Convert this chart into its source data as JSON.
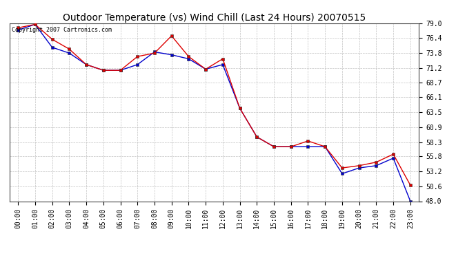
{
  "title": "Outdoor Temperature (vs) Wind Chill (Last 24 Hours) 20070515",
  "copyright_text": "Copyright 2007 Cartronics.com",
  "x_labels": [
    "00:00",
    "01:00",
    "02:00",
    "03:00",
    "04:00",
    "05:00",
    "06:00",
    "07:00",
    "08:00",
    "09:00",
    "10:00",
    "11:00",
    "12:00",
    "13:00",
    "14:00",
    "15:00",
    "16:00",
    "17:00",
    "18:00",
    "19:00",
    "20:00",
    "21:00",
    "22:00",
    "23:00"
  ],
  "temp_red": [
    78.2,
    78.8,
    76.2,
    74.5,
    71.8,
    70.8,
    70.8,
    73.2,
    73.8,
    76.8,
    73.2,
    71.0,
    72.8,
    64.2,
    59.2,
    57.5,
    57.5,
    58.5,
    57.5,
    53.8,
    54.2,
    54.8,
    56.2,
    50.8
  ],
  "temp_blue": [
    77.8,
    78.8,
    74.8,
    73.8,
    71.8,
    70.8,
    70.8,
    71.8,
    74.0,
    73.5,
    72.8,
    71.0,
    71.8,
    64.2,
    59.2,
    57.5,
    57.5,
    57.5,
    57.5,
    52.8,
    53.8,
    54.2,
    55.5,
    48.0
  ],
  "ylim_min": 48.0,
  "ylim_max": 79.0,
  "yticks": [
    48.0,
    50.6,
    53.2,
    55.8,
    58.3,
    60.9,
    63.5,
    66.1,
    68.7,
    71.2,
    73.8,
    76.4,
    79.0
  ],
  "red_color": "#dd0000",
  "blue_color": "#0000cc",
  "background_color": "#ffffff",
  "plot_bg_color": "#ffffff",
  "grid_color": "#bbbbbb",
  "title_fontsize": 10,
  "tick_fontsize": 7,
  "copyright_fontsize": 6,
  "marker": "s",
  "marker_size": 2.5,
  "line_width": 1.0
}
